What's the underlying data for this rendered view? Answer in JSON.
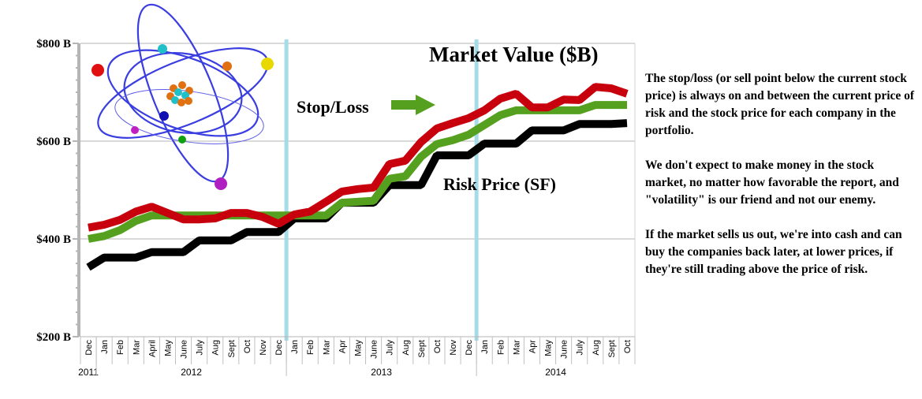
{
  "chart_data": {
    "type": "line",
    "title": "Market Value ($B)",
    "xlabel": "",
    "ylabel": "",
    "ylim": [
      200,
      800
    ],
    "yticks": [
      {
        "value": 800,
        "label": "$800 B"
      },
      {
        "value": 600,
        "label": "$600 B"
      },
      {
        "value": 400,
        "label": "$400 B"
      },
      {
        "value": 200,
        "label": "$200 B"
      }
    ],
    "grid": true,
    "x": [
      "Dec",
      "Jan",
      "Feb",
      "Mar",
      "April",
      "May",
      "June",
      "July",
      "Aug",
      "Sept",
      "Oct",
      "Nov",
      "Dec",
      "Jan",
      "Feb",
      "Mar",
      "Apr",
      "May",
      "June",
      "July",
      "Aug",
      "Sept",
      "Oct",
      "Nov",
      "Dec",
      "Jan",
      "Feb",
      "Mar",
      "Apr",
      "May",
      "June",
      "July",
      "Aug",
      "Sept",
      "Oct"
    ],
    "years": [
      {
        "label": "2011",
        "start": 0,
        "end": 0
      },
      {
        "label": "2012",
        "start": 1,
        "end": 12
      },
      {
        "label": "2013",
        "start": 13,
        "end": 24
      },
      {
        "label": "2014",
        "start": 25,
        "end": 34
      }
    ],
    "series": [
      {
        "name": "Market Value",
        "color": "#c8000e",
        "values": [
          423,
          429,
          439,
          456,
          466,
          453,
          440,
          440,
          442,
          453,
          453,
          445,
          431,
          450,
          456,
          476,
          497,
          502,
          505,
          553,
          560,
          598,
          626,
          637,
          647,
          663,
          687,
          697,
          669,
          669,
          685,
          684,
          711,
          708,
          697
        ]
      },
      {
        "name": "Stop/Loss",
        "color": "#55a01e",
        "values": [
          400,
          406,
          418,
          437,
          448,
          448,
          448,
          448,
          448,
          448,
          448,
          448,
          448,
          448,
          448,
          448,
          474,
          476,
          478,
          523,
          528,
          568,
          594,
          602,
          613,
          633,
          653,
          663,
          663,
          663,
          663,
          663,
          674,
          674,
          674
        ]
      },
      {
        "name": "Risk Price (SF)",
        "color": "#000000",
        "values": [
          342,
          362,
          362,
          362,
          373,
          373,
          373,
          397,
          397,
          397,
          414,
          414,
          414,
          442,
          442,
          442,
          474,
          474,
          474,
          510,
          510,
          510,
          571,
          571,
          571,
          595,
          595,
          595,
          622,
          622,
          622,
          635,
          635,
          635,
          637
        ]
      }
    ],
    "vlines": [
      {
        "at": 12.5,
        "color": "#a6dbe8"
      },
      {
        "at": 24.5,
        "color": "#a6dbe8"
      }
    ],
    "annotations": [
      {
        "text": "Market Value ($B)",
        "kind": "title"
      },
      {
        "text": "Stop/Loss",
        "kind": "label-with-arrow",
        "arrow_color": "#55a01e"
      },
      {
        "text": "Risk Price (SF)",
        "kind": "label"
      }
    ]
  },
  "notes": [
    "The stop/loss (or sell point below the current stock price) is always on and between the current price of risk and the stock price for each company in the portfolio.",
    "We don't expect to make money in the stock market, no matter how favorable the report, and \"volatility\" is our friend and not our enemy.",
    "If the market sells us out, we're into cash and can buy the companies back later, at lower prices, if they're still trading above the price of risk."
  ],
  "decoration": {
    "icon": "atom-icon"
  }
}
